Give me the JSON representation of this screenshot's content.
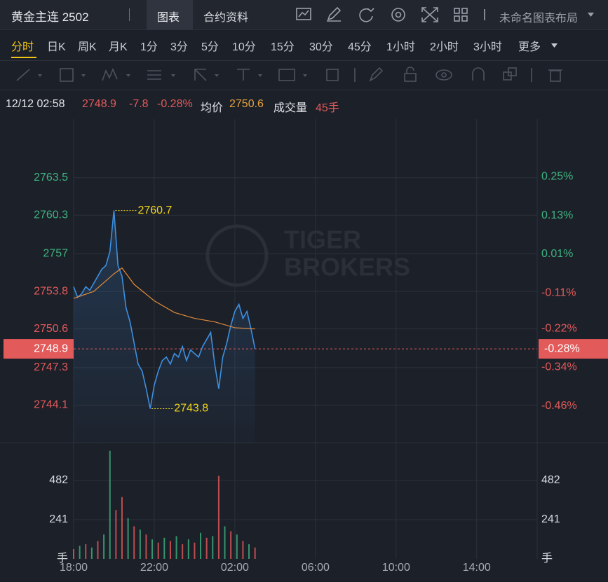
{
  "header": {
    "title": "黄金主连 2502",
    "tabs": [
      "图表",
      "合约资料"
    ],
    "layout_name": "未命名图表布局"
  },
  "periods": [
    "分时",
    "日K",
    "周K",
    "月K",
    "1分",
    "3分",
    "5分",
    "10分",
    "15分",
    "30分",
    "45分",
    "1小时",
    "2小时",
    "3小时",
    "更多"
  ],
  "info": {
    "time": "12/12 02:58",
    "price": "2748.9",
    "change": "-7.8",
    "change_pct": "-0.28%",
    "avg_label": "均价",
    "avg": "2750.6",
    "volume_label": "成交量",
    "volume": "45手"
  },
  "chart_data": {
    "type": "line",
    "watermark": [
      "TIGER",
      "BROKERS"
    ],
    "xlim": [
      0,
      23
    ],
    "xticks": [
      {
        "value": 0,
        "label": "18:00"
      },
      {
        "value": 4,
        "label": "22:00"
      },
      {
        "value": 8,
        "label": "02:00"
      },
      {
        "value": 12,
        "label": "06:00"
      },
      {
        "value": 16,
        "label": "10:00"
      },
      {
        "value": 20,
        "label": "14:00"
      }
    ],
    "ylim": [
      2740.9,
      2768.5
    ],
    "yticks": [
      2763.5,
      2760.3,
      2757.0,
      2753.8,
      2750.6,
      2747.3,
      2744.1
    ],
    "y2lim": [
      -0.573,
      0.428
    ],
    "y2ticks": [
      {
        "value": 0.25,
        "label": "0.25%"
      },
      {
        "value": 0.13,
        "label": "0.13%"
      },
      {
        "value": 0.01,
        "label": "0.01%"
      },
      {
        "value": -0.11,
        "label": "-0.11%"
      },
      {
        "value": -0.22,
        "label": "-0.22%"
      },
      {
        "value": -0.34,
        "label": "-0.34%"
      },
      {
        "value": -0.46,
        "label": "-0.46%"
      }
    ],
    "up_color": "#3fb27f",
    "down_color": "#e35a5a",
    "series": [
      {
        "color": "#3d8fe0",
        "x": [
          0,
          0.2,
          0.4,
          0.6,
          0.8,
          1.0,
          1.2,
          1.4,
          1.6,
          1.8,
          2.0,
          2.2,
          2.4,
          2.6,
          2.8,
          3.0,
          3.2,
          3.4,
          3.6,
          3.8,
          4.0,
          4.2,
          4.4,
          4.6,
          4.8,
          5.0,
          5.2,
          5.4,
          5.6,
          5.8,
          6.0,
          6.2,
          6.4,
          6.6,
          6.8,
          7.0,
          7.2,
          7.4,
          7.6,
          7.8,
          8.0,
          8.2,
          8.4,
          8.6,
          8.8,
          9.0
        ],
        "values": [
          2754.2,
          2753.3,
          2753.6,
          2754.2,
          2753.9,
          2754.5,
          2755.1,
          2755.7,
          2756.0,
          2757.2,
          2760.7,
          2756.0,
          2755.1,
          2752.4,
          2751.2,
          2749.4,
          2747.6,
          2747.0,
          2745.5,
          2743.8,
          2745.8,
          2747.0,
          2747.9,
          2748.2,
          2747.6,
          2748.5,
          2748.2,
          2749.1,
          2747.9,
          2748.8,
          2748.5,
          2748.2,
          2749.1,
          2749.7,
          2750.3,
          2747.6,
          2745.5,
          2748.2,
          2749.4,
          2750.9,
          2752.1,
          2752.7,
          2751.5,
          2752.1,
          2750.6,
          2748.9
        ]
      },
      {
        "color": "#e08a3a",
        "x": [
          0,
          1,
          2,
          2.4,
          3,
          4,
          5,
          6,
          7,
          8,
          9
        ],
        "values": [
          2753.2,
          2753.8,
          2755.3,
          2755.8,
          2754.4,
          2753.0,
          2752.0,
          2751.5,
          2751.2,
          2750.7,
          2750.6
        ]
      }
    ],
    "last_price": 2748.9,
    "last_pct": {
      "value": -0.28,
      "label": "-0.28%"
    },
    "max_point": {
      "x": 2.0,
      "value": 2760.7
    },
    "min_point": {
      "x": 3.8,
      "value": 2743.8
    },
    "volume": {
      "x": [
        0,
        0.3,
        0.6,
        0.9,
        1.2,
        1.5,
        1.8,
        2.1,
        2.4,
        2.7,
        3.0,
        3.3,
        3.6,
        3.9,
        4.2,
        4.5,
        4.8,
        5.1,
        5.4,
        5.7,
        6.0,
        6.3,
        6.6,
        6.9,
        7.2,
        7.5,
        7.8,
        8.1,
        8.4,
        8.7,
        9.0
      ],
      "values": [
        60,
        80,
        90,
        70,
        110,
        150,
        664,
        300,
        380,
        250,
        200,
        180,
        150,
        120,
        100,
        130,
        110,
        140,
        90,
        120,
        100,
        160,
        130,
        140,
        510,
        200,
        170,
        150,
        110,
        90,
        70
      ],
      "colors": [
        "#e35a5a",
        "#3fb27f",
        "#e35a5a",
        "#3fb27f",
        "#e35a5a",
        "#3fb27f",
        "#3fb27f",
        "#e35a5a",
        "#e35a5a",
        "#3fb27f",
        "#e35a5a",
        "#3fb27f",
        "#e35a5a",
        "#3fb27f",
        "#e35a5a",
        "#3fb27f",
        "#e35a5a",
        "#3fb27f",
        "#e35a5a",
        "#3fb27f",
        "#e35a5a",
        "#3fb27f",
        "#e35a5a",
        "#3fb27f",
        "#e35a5a",
        "#3fb27f",
        "#e35a5a",
        "#3fb27f",
        "#e35a5a",
        "#3fb27f",
        "#e35a5a"
      ],
      "vlim": [
        0,
        680
      ],
      "vticks": [
        241,
        482
      ],
      "unit": "手"
    }
  }
}
